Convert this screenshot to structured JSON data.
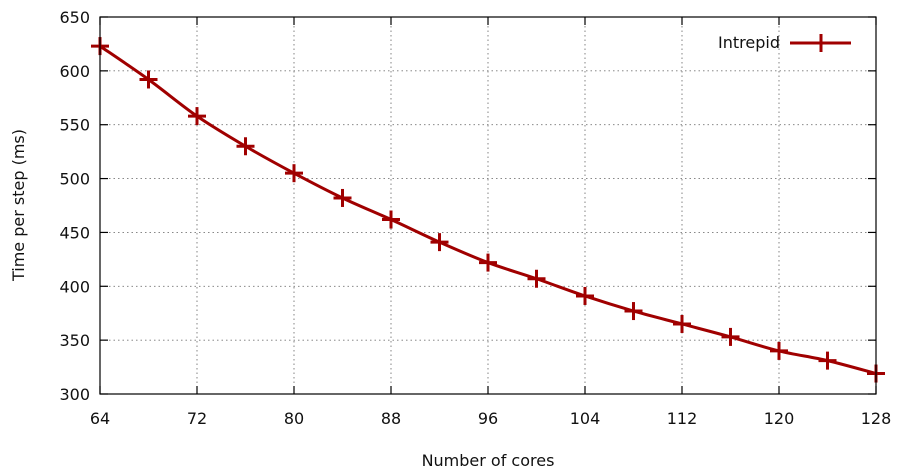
{
  "chart_data": {
    "type": "line",
    "title": "",
    "xlabel": "Number of cores",
    "ylabel": "Time per step (ms)",
    "xlim": [
      64,
      128
    ],
    "ylim": [
      300,
      650
    ],
    "x_ticks": [
      64,
      72,
      80,
      88,
      96,
      104,
      112,
      120,
      128
    ],
    "y_ticks": [
      300,
      350,
      400,
      450,
      500,
      550,
      600,
      650
    ],
    "grid": true,
    "legend": {
      "position": "top-right"
    },
    "series": [
      {
        "name": "Intrepid",
        "color": "#a00000",
        "marker": "plus",
        "x": [
          64,
          68,
          72,
          76,
          80,
          84,
          88,
          92,
          96,
          100,
          104,
          108,
          112,
          116,
          120,
          124,
          128
        ],
        "y": [
          623,
          592,
          558,
          530,
          505,
          482,
          462,
          441,
          422,
          407,
          391,
          377,
          365,
          353,
          340,
          331,
          319
        ]
      }
    ]
  }
}
